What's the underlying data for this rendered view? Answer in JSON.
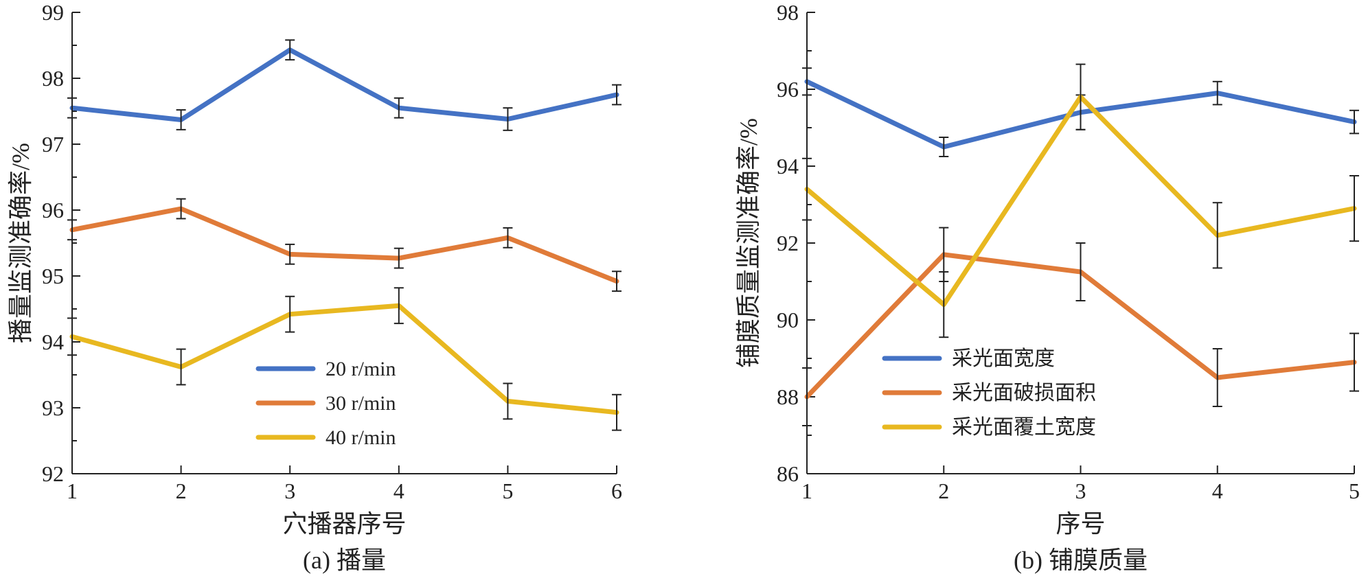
{
  "chart_data": [
    {
      "type": "line",
      "caption": "(a) 播量",
      "xlabel": "穴播器序号",
      "ylabel": "播量监测准确率/%",
      "xlim": [
        1,
        6
      ],
      "ylim": [
        92,
        99
      ],
      "x": [
        1,
        2,
        3,
        4,
        5,
        6
      ],
      "xticks": [
        "1",
        "2",
        "3",
        "4",
        "5",
        "6"
      ],
      "yticks": [
        "92",
        "93",
        "94",
        "95",
        "96",
        "97",
        "98",
        "99"
      ],
      "legend_position": "lower-center",
      "series": [
        {
          "name": "20 r/min",
          "color": "#4472C4",
          "values": [
            97.55,
            97.37,
            98.43,
            97.55,
            97.38,
            97.75
          ],
          "errors": [
            0.15,
            0.15,
            0.15,
            0.15,
            0.17,
            0.15
          ]
        },
        {
          "name": "30 r/min",
          "color": "#E07B39",
          "values": [
            95.7,
            96.02,
            95.33,
            95.27,
            95.58,
            94.92
          ],
          "errors": [
            0.15,
            0.15,
            0.15,
            0.15,
            0.15,
            0.15
          ]
        },
        {
          "name": "40 r/min",
          "color": "#E8B820",
          "values": [
            94.08,
            93.62,
            94.42,
            94.55,
            93.1,
            92.93
          ],
          "errors": [
            0.28,
            0.27,
            0.27,
            0.27,
            0.27,
            0.27
          ]
        }
      ]
    },
    {
      "type": "line",
      "caption": "(b) 铺膜质量",
      "xlabel": "序号",
      "ylabel": "铺膜质量监测准确率/%",
      "xlim": [
        1,
        5
      ],
      "ylim": [
        86,
        98
      ],
      "x": [
        1,
        2,
        3,
        4,
        5
      ],
      "xticks": [
        "1",
        "2",
        "3",
        "4",
        "5"
      ],
      "yticks": [
        "86",
        "88",
        "90",
        "92",
        "94",
        "96",
        "98"
      ],
      "legend_position": "lower-left",
      "series": [
        {
          "name": "采光面宽度",
          "color": "#4472C4",
          "values": [
            96.2,
            94.5,
            95.4,
            95.9,
            95.15
          ],
          "errors": [
            0.35,
            0.25,
            0.45,
            0.3,
            0.3
          ]
        },
        {
          "name": "采光面破损面积",
          "color": "#E07B39",
          "values": [
            88.0,
            91.7,
            91.25,
            88.5,
            88.9
          ],
          "errors": [
            0.75,
            0.7,
            0.75,
            0.75,
            0.75
          ]
        },
        {
          "name": "采光面覆土宽度",
          "color": "#E8B820",
          "values": [
            93.4,
            90.4,
            95.8,
            92.2,
            92.9
          ],
          "errors": [
            0.8,
            0.85,
            0.85,
            0.85,
            0.85
          ]
        }
      ]
    }
  ]
}
